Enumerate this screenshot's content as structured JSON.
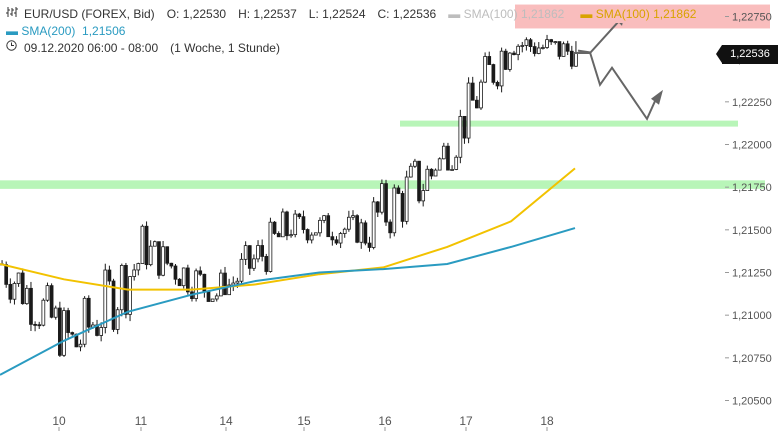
{
  "legend": {
    "symbol_name": "candlestick-icon",
    "title": "EUR/USD (FOREX, Bid)",
    "open": "O: 1,22530",
    "high": "H: 1,22537",
    "low": "L: 1,22524",
    "close": "C: 1,22536",
    "sma100_label_gray": "SMA(100)",
    "sma100_value_gray": "1,21862",
    "sma100_label": "SMA(100)",
    "sma100_value": "1,21862",
    "sma200_label": "SMA(200)",
    "sma200_value": "1,21506",
    "date_range": "09.12.2020 06:00 - 08:00",
    "interval": "(1 Woche, 1 Stunde)"
  },
  "price_tag": "1,22536",
  "colors": {
    "candle": "#1a1a1a",
    "sma100": "#f2c200",
    "sma200": "#2a9bc1",
    "resistance_zone": "#f9bdbd",
    "support_zone": "#b8f5b8",
    "arrows": "#666666"
  },
  "chart_data": {
    "type": "candlestick",
    "title": "EUR/USD (FOREX, Bid)",
    "xlabel": "",
    "ylabel": "",
    "x_ticks": [
      "10",
      "11",
      "14",
      "15",
      "16",
      "17",
      "18"
    ],
    "y_ticks": [
      "1,22750",
      "1,22500",
      "1,22250",
      "1,22000",
      "1,21750",
      "1,21500",
      "1,21250",
      "1,21000",
      "1,20750",
      "1,20500"
    ],
    "y_tick_values": [
      1.2275,
      1.225,
      1.2225,
      1.22,
      1.2175,
      1.215,
      1.2125,
      1.21,
      1.2075,
      1.205
    ],
    "ylim": [
      1.2042,
      1.2281
    ],
    "grid": false,
    "last_price": 1.22536,
    "price_path_daily": [
      {
        "day": "09",
        "open": 1.213,
        "high": 1.2138,
        "low": 1.2058,
        "close": 1.2082
      },
      {
        "day": "10",
        "open": 1.2082,
        "high": 1.216,
        "low": 1.2063,
        "close": 1.2138
      },
      {
        "day": "11",
        "open": 1.2138,
        "high": 1.2162,
        "low": 1.2108,
        "close": 1.2112
      },
      {
        "day": "14",
        "open": 1.2112,
        "high": 1.2175,
        "low": 1.2112,
        "close": 1.2152
      },
      {
        "day": "15",
        "open": 1.2152,
        "high": 1.2162,
        "low": 1.2122,
        "close": 1.215
      },
      {
        "day": "16",
        "open": 1.215,
        "high": 1.2212,
        "low": 1.2125,
        "close": 1.2185
      },
      {
        "day": "17",
        "open": 1.2185,
        "high": 1.226,
        "low": 1.2185,
        "close": 1.226
      },
      {
        "day": "18",
        "open": 1.226,
        "high": 1.2277,
        "low": 1.2238,
        "close": 1.22536
      }
    ],
    "series": [
      {
        "name": "SMA(100)",
        "values": [
          1.213,
          1.2121,
          1.2115,
          1.2115,
          1.2118,
          1.2124,
          1.2128,
          1.214,
          1.2155,
          1.2186
        ]
      },
      {
        "name": "SMA(200)",
        "values": [
          1.2065,
          1.2085,
          1.2102,
          1.2112,
          1.212,
          1.2125,
          1.2127,
          1.213,
          1.214,
          1.2151
        ]
      }
    ],
    "zones": [
      {
        "kind": "resistance",
        "from": 1.2268,
        "to": 1.2282
      },
      {
        "kind": "support",
        "from": 1.2211,
        "to": 1.2214
      },
      {
        "kind": "support",
        "from": 1.2174,
        "to": 1.2179
      }
    ]
  }
}
